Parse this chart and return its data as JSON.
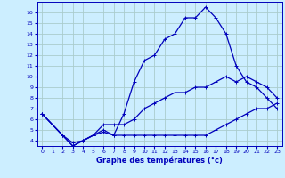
{
  "xlabel": "Graphe des températures (°c)",
  "bg_color": "#cceeff",
  "grid_color": "#aacccc",
  "line_color": "#0000bb",
  "hours": [
    0,
    1,
    2,
    3,
    4,
    5,
    6,
    7,
    8,
    9,
    10,
    11,
    12,
    13,
    14,
    15,
    16,
    17,
    18,
    19,
    20,
    21,
    22,
    23
  ],
  "temp_main": [
    6.5,
    5.5,
    4.5,
    3.5,
    4.0,
    4.5,
    5.0,
    4.5,
    6.5,
    9.5,
    11.5,
    12.0,
    13.5,
    14.0,
    15.5,
    15.5,
    16.5,
    15.5,
    14.0,
    11.0,
    9.5,
    9.0,
    8.0,
    7.0
  ],
  "temp_mid": [
    6.5,
    5.5,
    4.5,
    3.8,
    4.0,
    4.5,
    5.5,
    5.5,
    5.5,
    6.0,
    7.0,
    7.5,
    8.0,
    8.5,
    8.5,
    9.0,
    9.0,
    9.5,
    10.0,
    9.5,
    10.0,
    9.5,
    9.0,
    8.0
  ],
  "temp_low": [
    6.5,
    5.5,
    4.5,
    3.5,
    4.0,
    4.5,
    4.8,
    4.5,
    4.5,
    4.5,
    4.5,
    4.5,
    4.5,
    4.5,
    4.5,
    4.5,
    4.5,
    5.0,
    5.5,
    6.0,
    6.5,
    7.0,
    7.0,
    7.5
  ],
  "ylim": [
    3.5,
    17.0
  ],
  "xlim": [
    -0.5,
    23.5
  ],
  "yticks": [
    4,
    5,
    6,
    7,
    8,
    9,
    10,
    11,
    12,
    13,
    14,
    15,
    16
  ],
  "xticks": [
    0,
    1,
    2,
    3,
    4,
    5,
    6,
    7,
    8,
    9,
    10,
    11,
    12,
    13,
    14,
    15,
    16,
    17,
    18,
    19,
    20,
    21,
    22,
    23
  ]
}
